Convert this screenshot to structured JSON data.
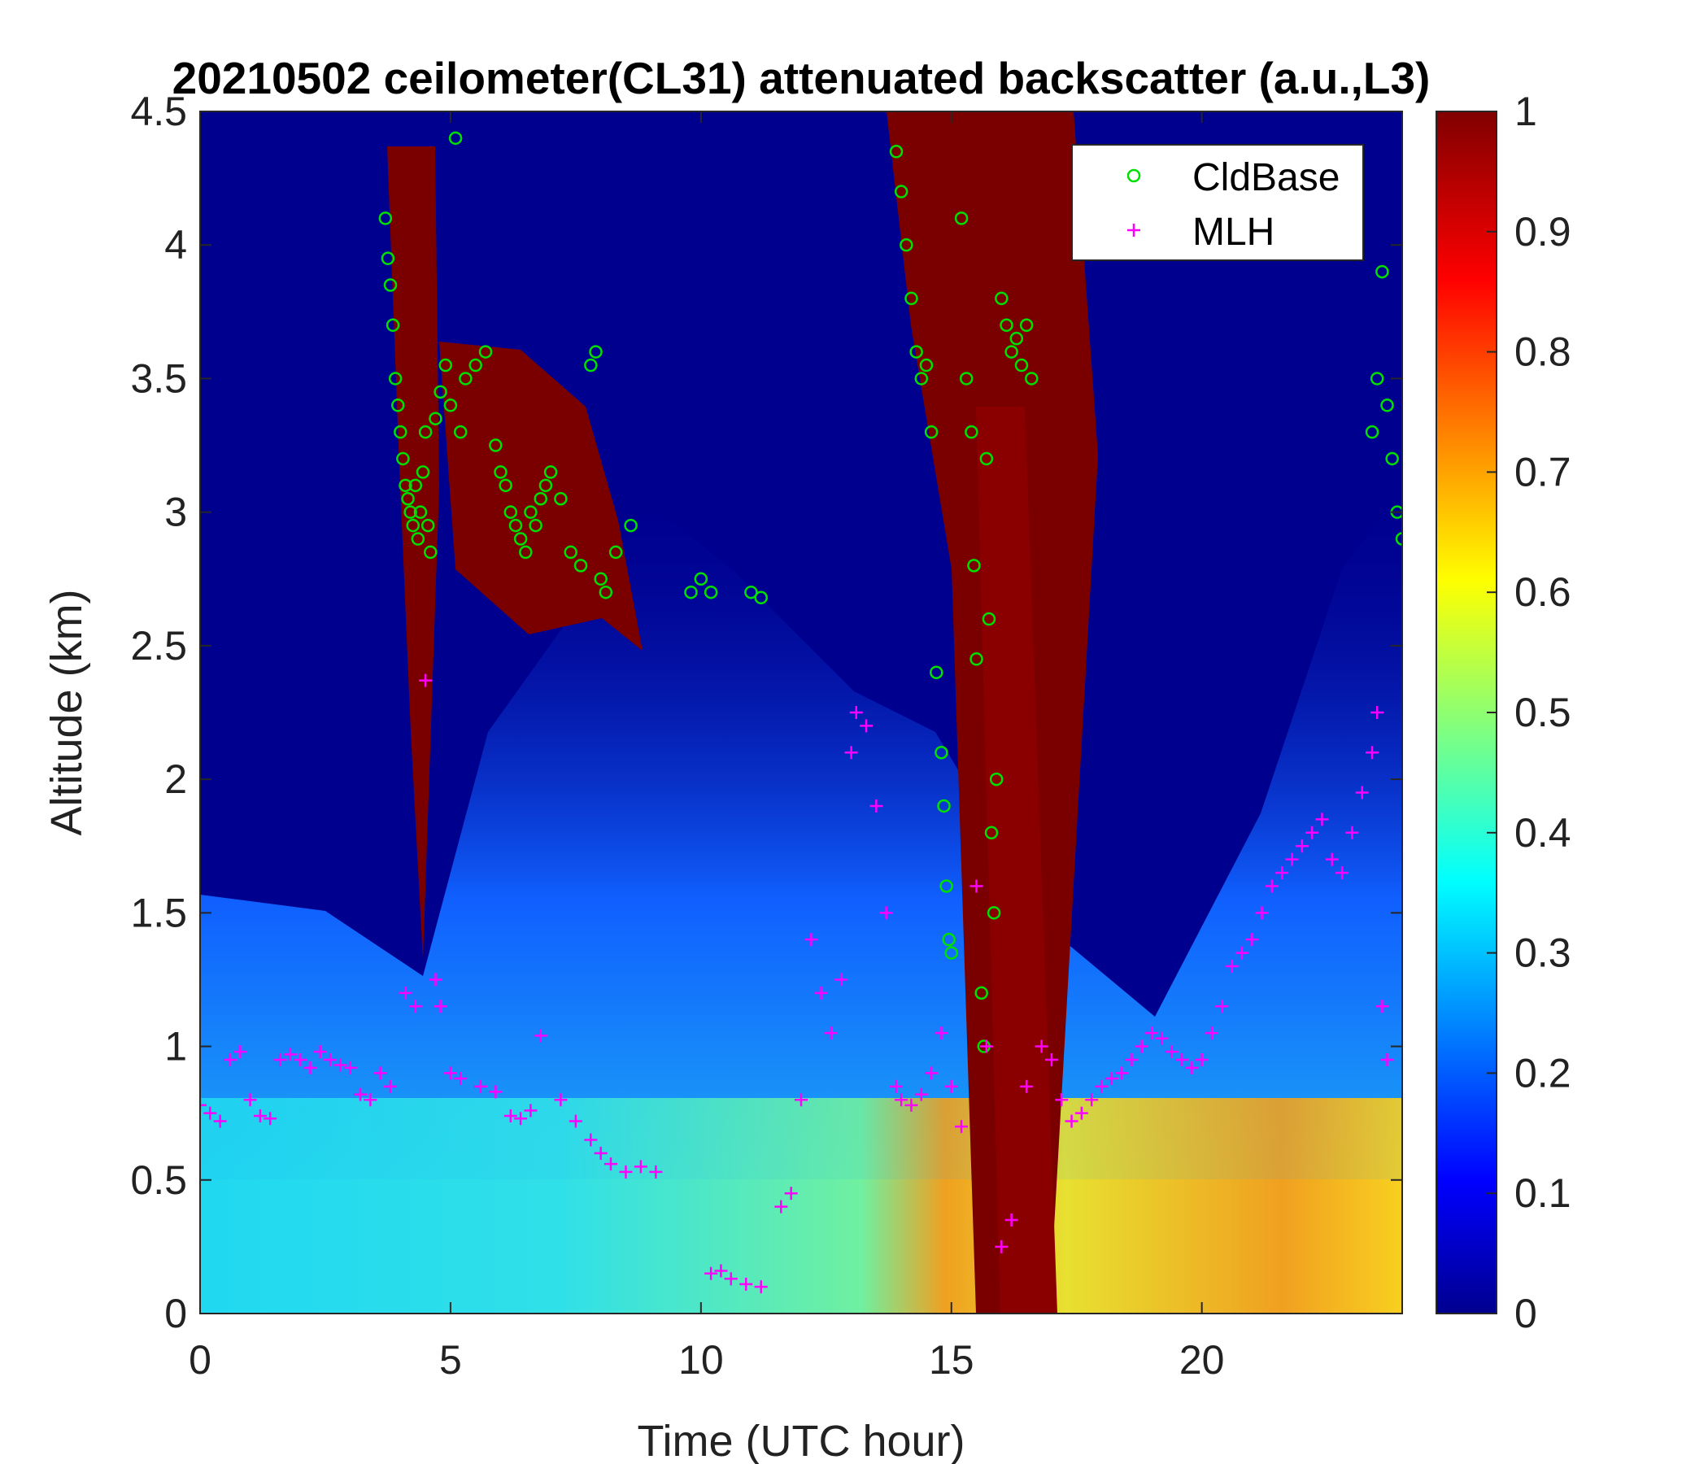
{
  "chart_data": {
    "type": "heatmap",
    "title": "20210502 ceilometer(CL31) attenuated backscatter (a.u.,L3)",
    "xlabel": "Time (UTC hour)",
    "ylabel": "Altitude (km)",
    "xlim": [
      0,
      24
    ],
    "ylim": [
      0,
      4.5
    ],
    "x_ticks": [
      0,
      5,
      10,
      15,
      20
    ],
    "x_tick_labels": [
      "0",
      "5",
      "10",
      "15",
      "20"
    ],
    "y_ticks": [
      0,
      0.5,
      1,
      1.5,
      2,
      2.5,
      3,
      3.5,
      4,
      4.5
    ],
    "y_tick_labels": [
      "0",
      "0.5",
      "1",
      "1.5",
      "2",
      "2.5",
      "3",
      "3.5",
      "4",
      "4.5"
    ],
    "colorbar": {
      "colormap": "jet",
      "range": [
        0,
        1
      ],
      "ticks": [
        0,
        0.1,
        0.2,
        0.3,
        0.4,
        0.5,
        0.6,
        0.7,
        0.8,
        0.9,
        1
      ],
      "tick_labels": [
        "0",
        "0.1",
        "0.2",
        "0.3",
        "0.4",
        "0.5",
        "0.6",
        "0.7",
        "0.8",
        "0.9",
        "1"
      ]
    },
    "legend": {
      "location": "top-right",
      "entries": [
        {
          "label": "CldBase",
          "marker": "circle",
          "color": "#00e000"
        },
        {
          "label": "MLH",
          "marker": "plus",
          "color": "#ff00ff"
        }
      ]
    },
    "series": [
      {
        "name": "CldBase",
        "marker": "circle",
        "color": "#00e000",
        "points": [
          [
            3.7,
            4.1
          ],
          [
            3.75,
            3.95
          ],
          [
            3.8,
            3.85
          ],
          [
            3.85,
            3.7
          ],
          [
            3.9,
            3.5
          ],
          [
            3.95,
            3.4
          ],
          [
            4.0,
            3.3
          ],
          [
            4.05,
            3.2
          ],
          [
            4.1,
            3.1
          ],
          [
            4.15,
            3.05
          ],
          [
            4.2,
            3.0
          ],
          [
            4.25,
            2.95
          ],
          [
            4.3,
            3.1
          ],
          [
            4.35,
            2.9
          ],
          [
            4.4,
            3.0
          ],
          [
            4.45,
            3.15
          ],
          [
            4.5,
            3.3
          ],
          [
            4.55,
            2.95
          ],
          [
            4.6,
            2.85
          ],
          [
            4.7,
            3.35
          ],
          [
            4.8,
            3.45
          ],
          [
            4.9,
            3.55
          ],
          [
            5.0,
            3.4
          ],
          [
            5.1,
            4.4
          ],
          [
            5.2,
            3.3
          ],
          [
            5.3,
            3.5
          ],
          [
            5.5,
            3.55
          ],
          [
            5.7,
            3.6
          ],
          [
            5.9,
            3.25
          ],
          [
            6.0,
            3.15
          ],
          [
            6.1,
            3.1
          ],
          [
            6.2,
            3.0
          ],
          [
            6.3,
            2.95
          ],
          [
            6.4,
            2.9
          ],
          [
            6.5,
            2.85
          ],
          [
            6.6,
            3.0
          ],
          [
            6.7,
            2.95
          ],
          [
            6.8,
            3.05
          ],
          [
            6.9,
            3.1
          ],
          [
            7.0,
            3.15
          ],
          [
            7.2,
            3.05
          ],
          [
            7.4,
            2.85
          ],
          [
            7.6,
            2.8
          ],
          [
            7.8,
            3.55
          ],
          [
            7.9,
            3.6
          ],
          [
            8.0,
            2.75
          ],
          [
            8.1,
            2.7
          ],
          [
            8.3,
            2.85
          ],
          [
            8.6,
            2.95
          ],
          [
            9.8,
            2.7
          ],
          [
            10.0,
            2.75
          ],
          [
            10.2,
            2.7
          ],
          [
            11.0,
            2.7
          ],
          [
            11.2,
            2.68
          ],
          [
            13.9,
            4.35
          ],
          [
            14.0,
            4.2
          ],
          [
            14.1,
            4.0
          ],
          [
            14.2,
            3.8
          ],
          [
            14.3,
            3.6
          ],
          [
            14.4,
            3.5
          ],
          [
            14.5,
            3.55
          ],
          [
            14.6,
            3.3
          ],
          [
            14.7,
            2.4
          ],
          [
            14.8,
            2.1
          ],
          [
            14.85,
            1.9
          ],
          [
            14.9,
            1.6
          ],
          [
            14.95,
            1.4
          ],
          [
            15.0,
            1.35
          ],
          [
            15.2,
            4.1
          ],
          [
            15.3,
            3.5
          ],
          [
            15.4,
            3.3
          ],
          [
            15.45,
            2.8
          ],
          [
            15.5,
            2.45
          ],
          [
            15.6,
            1.2
          ],
          [
            15.65,
            1.0
          ],
          [
            15.7,
            3.2
          ],
          [
            15.75,
            2.6
          ],
          [
            15.8,
            1.8
          ],
          [
            15.85,
            1.5
          ],
          [
            15.9,
            2.0
          ],
          [
            16.0,
            3.8
          ],
          [
            16.1,
            3.7
          ],
          [
            16.2,
            3.6
          ],
          [
            16.3,
            3.65
          ],
          [
            16.4,
            3.55
          ],
          [
            16.5,
            3.7
          ],
          [
            16.6,
            3.5
          ],
          [
            23.4,
            3.3
          ],
          [
            23.5,
            3.5
          ],
          [
            23.6,
            3.9
          ],
          [
            23.7,
            3.4
          ],
          [
            23.8,
            3.2
          ],
          [
            23.9,
            3.0
          ],
          [
            24.0,
            2.9
          ]
        ]
      },
      {
        "name": "MLH",
        "marker": "plus",
        "color": "#ff00ff",
        "points": [
          [
            0.0,
            0.78
          ],
          [
            0.2,
            0.75
          ],
          [
            0.4,
            0.72
          ],
          [
            0.6,
            0.95
          ],
          [
            0.8,
            0.98
          ],
          [
            1.0,
            0.8
          ],
          [
            1.2,
            0.74
          ],
          [
            1.4,
            0.73
          ],
          [
            1.6,
            0.95
          ],
          [
            1.8,
            0.97
          ],
          [
            2.0,
            0.95
          ],
          [
            2.2,
            0.92
          ],
          [
            2.4,
            0.98
          ],
          [
            2.6,
            0.95
          ],
          [
            2.8,
            0.93
          ],
          [
            3.0,
            0.92
          ],
          [
            3.2,
            0.82
          ],
          [
            3.4,
            0.8
          ],
          [
            3.6,
            0.9
          ],
          [
            3.8,
            0.85
          ],
          [
            4.1,
            1.2
          ],
          [
            4.3,
            1.15
          ],
          [
            4.5,
            2.37
          ],
          [
            4.7,
            1.25
          ],
          [
            4.8,
            1.15
          ],
          [
            5.0,
            0.9
          ],
          [
            5.2,
            0.88
          ],
          [
            5.6,
            0.85
          ],
          [
            5.9,
            0.83
          ],
          [
            6.2,
            0.74
          ],
          [
            6.4,
            0.73
          ],
          [
            6.6,
            0.76
          ],
          [
            6.8,
            1.04
          ],
          [
            7.2,
            0.8
          ],
          [
            7.5,
            0.72
          ],
          [
            7.8,
            0.65
          ],
          [
            8.0,
            0.6
          ],
          [
            8.2,
            0.56
          ],
          [
            8.5,
            0.53
          ],
          [
            8.8,
            0.55
          ],
          [
            9.1,
            0.53
          ],
          [
            10.2,
            0.15
          ],
          [
            10.4,
            0.16
          ],
          [
            10.6,
            0.13
          ],
          [
            10.9,
            0.11
          ],
          [
            11.2,
            0.1
          ],
          [
            11.6,
            0.4
          ],
          [
            11.8,
            0.45
          ],
          [
            12.0,
            0.8
          ],
          [
            12.2,
            1.4
          ],
          [
            12.4,
            1.2
          ],
          [
            12.6,
            1.05
          ],
          [
            12.8,
            1.25
          ],
          [
            13.0,
            2.1
          ],
          [
            13.1,
            2.25
          ],
          [
            13.3,
            2.2
          ],
          [
            13.5,
            1.9
          ],
          [
            13.7,
            1.5
          ],
          [
            13.9,
            0.85
          ],
          [
            14.0,
            0.8
          ],
          [
            14.2,
            0.78
          ],
          [
            14.4,
            0.82
          ],
          [
            14.6,
            0.9
          ],
          [
            14.8,
            1.05
          ],
          [
            15.0,
            0.85
          ],
          [
            15.2,
            0.7
          ],
          [
            15.5,
            1.6
          ],
          [
            15.7,
            1.0
          ],
          [
            16.0,
            0.25
          ],
          [
            16.2,
            0.35
          ],
          [
            16.5,
            0.85
          ],
          [
            16.8,
            1.0
          ],
          [
            17.0,
            0.95
          ],
          [
            17.2,
            0.8
          ],
          [
            17.4,
            0.72
          ],
          [
            17.6,
            0.75
          ],
          [
            17.8,
            0.8
          ],
          [
            18.0,
            0.85
          ],
          [
            18.2,
            0.88
          ],
          [
            18.4,
            0.9
          ],
          [
            18.6,
            0.95
          ],
          [
            18.8,
            1.0
          ],
          [
            19.0,
            1.05
          ],
          [
            19.2,
            1.03
          ],
          [
            19.4,
            0.98
          ],
          [
            19.6,
            0.95
          ],
          [
            19.8,
            0.92
          ],
          [
            20.0,
            0.95
          ],
          [
            20.2,
            1.05
          ],
          [
            20.4,
            1.15
          ],
          [
            20.6,
            1.3
          ],
          [
            20.8,
            1.35
          ],
          [
            21.0,
            1.4
          ],
          [
            21.2,
            1.5
          ],
          [
            21.4,
            1.6
          ],
          [
            21.6,
            1.65
          ],
          [
            21.8,
            1.7
          ],
          [
            22.0,
            1.75
          ],
          [
            22.2,
            1.8
          ],
          [
            22.4,
            1.85
          ],
          [
            22.6,
            1.7
          ],
          [
            22.8,
            1.65
          ],
          [
            23.0,
            1.8
          ],
          [
            23.2,
            1.95
          ],
          [
            23.4,
            2.1
          ],
          [
            23.5,
            2.25
          ],
          [
            23.6,
            1.15
          ],
          [
            23.7,
            0.95
          ]
        ]
      }
    ]
  }
}
